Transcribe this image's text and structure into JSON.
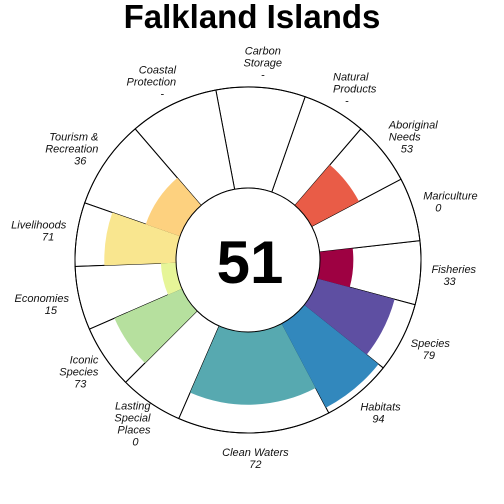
{
  "chart_data": {
    "type": "flower",
    "title": "Falkland Islands",
    "overall_score": "51",
    "max_value": 100,
    "goals": [
      {
        "name": "Fisheries",
        "value": 33,
        "label": "33",
        "weight": 1,
        "color": "#9e0142"
      },
      {
        "name": "Mariculture",
        "value": 0,
        "label": "0",
        "weight": 1,
        "color": "#d53e4f"
      },
      {
        "name": "Aboriginal Needs",
        "value": 53,
        "label": "53",
        "weight": 1,
        "color": "#e95c47"
      },
      {
        "name": "Natural Products",
        "value": null,
        "label": "-",
        "weight": 1,
        "color": "#f46d43"
      },
      {
        "name": "Carbon Storage",
        "value": null,
        "label": "-",
        "weight": 1.4,
        "color": "#fdae61"
      },
      {
        "name": "Coastal Protection",
        "value": null,
        "label": "-",
        "weight": 1.4,
        "color": "#fdbe6e"
      },
      {
        "name": "Tourism & Recreation",
        "value": 36,
        "label": "36",
        "weight": 1.4,
        "color": "#fdd17f"
      },
      {
        "name": "Livelihoods",
        "value": 71,
        "label": "71",
        "weight": 1,
        "color": "#f9e68f"
      },
      {
        "name": "Economies",
        "value": 15,
        "label": "15",
        "weight": 1,
        "color": "#e6f598"
      },
      {
        "name": "Iconic Species",
        "value": 73,
        "label": "73",
        "weight": 1,
        "color": "#b6e09e"
      },
      {
        "name": "Lasting Special Places",
        "value": 0,
        "label": "0",
        "weight": 1,
        "color": "#8cd3a4"
      },
      {
        "name": "Clean Waters",
        "value": 72,
        "label": "72",
        "weight": 2.4,
        "color": "#57a9b0"
      },
      {
        "name": "Habitats",
        "value": 94,
        "label": "94",
        "weight": 1.1,
        "color": "#3288bd"
      },
      {
        "name": "Species",
        "value": 79,
        "label": "79",
        "weight": 1.1,
        "color": "#5e4fa2"
      }
    ]
  }
}
